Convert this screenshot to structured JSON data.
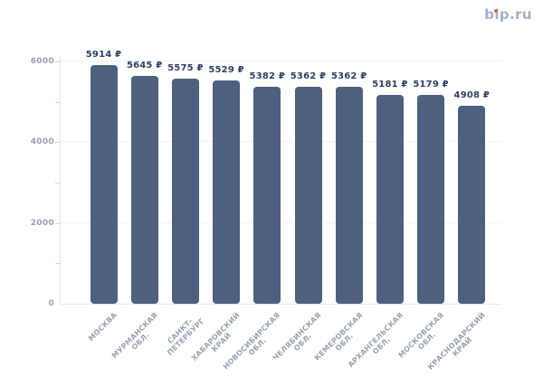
{
  "page": {
    "background": "#ffffff"
  },
  "logo": {
    "text": "bip.ru",
    "color": "#a5aec6",
    "dot_color": "#e4683f"
  },
  "chart_data": {
    "type": "bar",
    "title": "",
    "xlabel": "",
    "ylabel": "",
    "categories": [
      "МОСКВА",
      "МУРМАНСКАЯ ОБЛ.",
      "САНКТ-ПЕТЕРБУРГ",
      "ХАБАРОВСКИЙ КРАЙ",
      "НОВОСИБИРСКАЯ ОБЛ.",
      "ЧЕЛЯБИНСКАЯ ОБЛ.",
      "КЕМЕРОВСКАЯ ОБЛ.",
      "АРХАНГЕЛЬСКАЯ ОБЛ.",
      "МОСКОВСКАЯ ОБЛ.",
      "КРАСНОДАРСКИЙ КРАЙ"
    ],
    "category_label_lines": [
      [
        "МОСКВА"
      ],
      [
        "МУРМАНСКАЯ",
        "ОБЛ."
      ],
      [
        "САНКТ-",
        "ПЕТЕРБУРГ"
      ],
      [
        "ХАБАРОВСКИЙ",
        "КРАЙ"
      ],
      [
        "НОВОСИБИРСКАЯ",
        "ОБЛ."
      ],
      [
        "ЧЕЛЯБИНСКАЯ",
        "ОБЛ."
      ],
      [
        "КЕМЕРОВСКАЯ",
        "ОБЛ."
      ],
      [
        "АРХАНГЕЛЬСКАЯ",
        "ОБЛ."
      ],
      [
        "МОСКОВСКАЯ",
        "ОБЛ."
      ],
      [
        "КРАСНОДАРСКИЙ",
        "КРАЙ"
      ]
    ],
    "values": [
      5914,
      5645,
      5575,
      5529,
      5382,
      5362,
      5362,
      5181,
      5179,
      4908
    ],
    "value_labels": [
      "5914 ₽",
      "5645 ₽",
      "5575 ₽",
      "5529 ₽",
      "5382 ₽",
      "5362 ₽",
      "5362 ₽",
      "5181 ₽",
      "5179 ₽",
      "4908 ₽"
    ],
    "currency": "₽",
    "ylim": [
      0,
      6000
    ],
    "y_tick_values": [
      0,
      2000,
      4000,
      6000
    ],
    "y_tick_labels": [
      "0",
      "2000",
      "4000",
      "6000"
    ],
    "y_minor_tick_step": 1000,
    "grid": {
      "horizontal": true,
      "style": "dotted",
      "values": [
        2000,
        4000,
        6000
      ]
    },
    "legend": null,
    "colors": {
      "bar": "#4d6080",
      "value_label": "#2e4166",
      "axis_label": "#98a1b2",
      "grid_line": "#dfe3ea",
      "axis_line": "#e4e7ee"
    }
  }
}
